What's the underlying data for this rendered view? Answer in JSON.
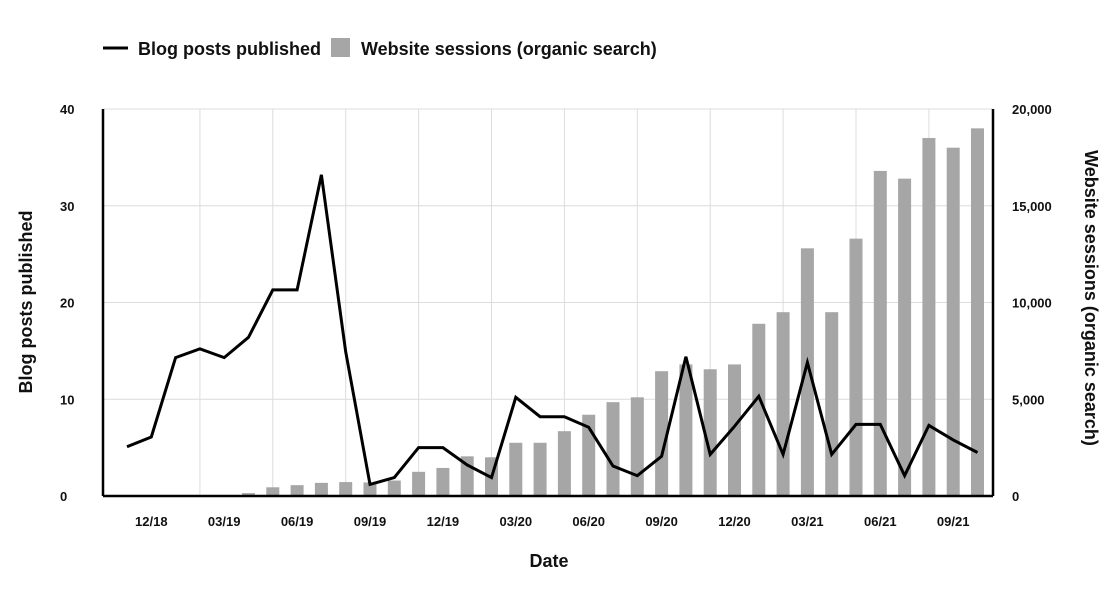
{
  "chart_data": {
    "type": "bar",
    "xlabel": "Date",
    "y_left_label": "Blog posts published",
    "y_right_label": "Website sessions (organic search)",
    "y_left_lim": [
      0,
      40
    ],
    "y_right_lim": [
      0,
      20000
    ],
    "y_left_ticks": [
      "0",
      "10",
      "20",
      "30",
      "40"
    ],
    "y_right_ticks": [
      "0",
      "5,000",
      "10,000",
      "15,000",
      "20,000"
    ],
    "x_tick_labels": [
      "12/18",
      "03/19",
      "06/19",
      "09/19",
      "12/19",
      "03/20",
      "06/20",
      "09/20",
      "12/20",
      "03/21",
      "06/21",
      "09/21"
    ],
    "months": [
      "11/18",
      "12/18",
      "01/19",
      "02/19",
      "03/19",
      "04/19",
      "05/19",
      "06/19",
      "07/19",
      "08/19",
      "09/19",
      "10/19",
      "11/19",
      "12/19",
      "01/20",
      "02/20",
      "03/20",
      "04/20",
      "05/20",
      "06/20",
      "07/20",
      "08/20",
      "09/20",
      "10/20",
      "11/20",
      "12/20",
      "01/21",
      "02/21",
      "03/21",
      "04/21",
      "05/21",
      "06/21",
      "07/21",
      "08/21",
      "09/21",
      "10/21"
    ],
    "grid": true,
    "legend_position": "top-left",
    "series": [
      {
        "name": "Blog posts published",
        "type": "line",
        "axis": "left",
        "color": "#000000",
        "values": [
          5.1,
          6.1,
          14.3,
          15.2,
          14.3,
          16.4,
          21.3,
          21.3,
          33.2,
          14.9,
          1.2,
          1.9,
          5.0,
          5.0,
          3.2,
          1.9,
          10.2,
          8.2,
          8.2,
          7.1,
          3.1,
          2.1,
          4.1,
          14.4,
          4.3,
          7.2,
          10.3,
          4.3,
          13.8,
          4.3,
          7.4,
          7.4,
          2.1,
          7.3,
          5.8,
          4.5
        ]
      },
      {
        "name": "Website sessions (organic search)",
        "type": "bar",
        "axis": "right",
        "color": "#a6a6a6",
        "values": [
          0,
          0,
          0,
          0,
          0,
          150,
          450,
          560,
          680,
          720,
          700,
          800,
          1250,
          1450,
          2050,
          2000,
          2750,
          2750,
          3350,
          4200,
          4850,
          5100,
          6450,
          6800,
          6550,
          6800,
          8900,
          9500,
          12800,
          9500,
          13300,
          16800,
          16400,
          18500,
          18000,
          19000
        ]
      }
    ]
  }
}
